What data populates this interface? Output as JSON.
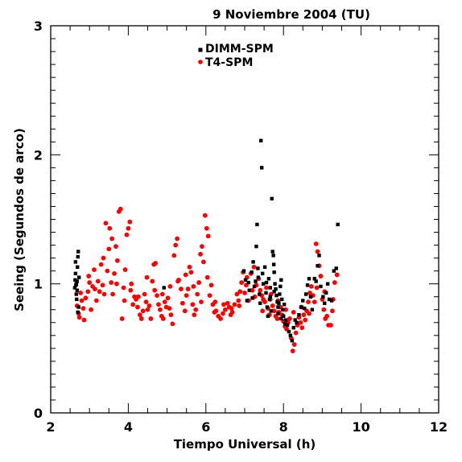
{
  "colors": {
    "dimm": "#000000",
    "t4": "#ff0000",
    "axes": "#000000",
    "background": "#ffffff"
  },
  "chart_data": {
    "type": "scatter",
    "title": "9 Noviembre 2004 (TU)",
    "xlabel": "Tiempo Universal (h)",
    "ylabel": "Seeing (Segundos de arco)",
    "xlim": [
      2,
      12
    ],
    "ylim": [
      0,
      3
    ],
    "x_major_ticks": [
      2,
      4,
      6,
      8,
      10,
      12
    ],
    "x_tick_labels": [
      "2",
      "4",
      "6",
      "8",
      "10",
      "12"
    ],
    "y_major_ticks": [
      0,
      1,
      2,
      3
    ],
    "y_tick_labels": [
      "0",
      "1",
      "2",
      "3"
    ],
    "grid": false,
    "legend_placement": "top-center",
    "series": [
      {
        "name": "DIMM-SPM",
        "color": "#000000",
        "marker": "square",
        "points": [
          [
            2.62,
            0.97
          ],
          [
            2.63,
            1.03
          ],
          [
            2.64,
            1.08
          ],
          [
            2.65,
            0.99
          ],
          [
            2.66,
            0.92
          ],
          [
            2.67,
            0.88
          ],
          [
            2.68,
            1.02
          ],
          [
            2.69,
            1.13
          ],
          [
            2.7,
            1.21
          ],
          [
            2.71,
            1.25
          ],
          [
            2.72,
            0.82
          ],
          [
            2.73,
            1.05
          ],
          [
            2.64,
            1.17
          ],
          [
            2.66,
            1.0
          ],
          [
            2.68,
            0.95
          ],
          [
            2.7,
            0.78
          ],
          [
            4.92,
            0.97
          ],
          [
            6.98,
            1.1
          ],
          [
            7.02,
            1.03
          ],
          [
            7.06,
            0.87
          ],
          [
            7.12,
            0.95
          ],
          [
            7.18,
            1.09
          ],
          [
            7.22,
            1.17
          ],
          [
            7.25,
            0.98
          ],
          [
            7.28,
            1.02
          ],
          [
            7.3,
            1.29
          ],
          [
            7.32,
            1.46
          ],
          [
            7.35,
            1.05
          ],
          [
            7.38,
            0.92
          ],
          [
            7.4,
            0.85
          ],
          [
            7.42,
            2.11
          ],
          [
            7.44,
            1.9
          ],
          [
            7.46,
            1.08
          ],
          [
            7.48,
            1.0
          ],
          [
            7.52,
            1.13
          ],
          [
            7.55,
            0.93
          ],
          [
            7.58,
            0.82
          ],
          [
            7.6,
            0.75
          ],
          [
            7.62,
            1.04
          ],
          [
            7.64,
            0.88
          ],
          [
            7.66,
            0.9
          ],
          [
            7.68,
            0.79
          ],
          [
            7.7,
            1.66
          ],
          [
            7.72,
            1.25
          ],
          [
            7.74,
            1.22
          ],
          [
            7.75,
            1.15
          ],
          [
            7.76,
            1.09
          ],
          [
            7.78,
            1.0
          ],
          [
            7.8,
            0.96
          ],
          [
            7.82,
            0.91
          ],
          [
            7.84,
            0.86
          ],
          [
            7.86,
            0.82
          ],
          [
            7.88,
            0.85
          ],
          [
            7.9,
            0.92
          ],
          [
            7.92,
            0.98
          ],
          [
            7.94,
            1.03
          ],
          [
            7.96,
            0.88
          ],
          [
            7.98,
            0.8
          ],
          [
            8.0,
            0.75
          ],
          [
            8.02,
            0.84
          ],
          [
            8.04,
            0.69
          ],
          [
            8.06,
            0.72
          ],
          [
            8.1,
            0.68
          ],
          [
            8.14,
            0.63
          ],
          [
            8.18,
            0.6
          ],
          [
            8.22,
            0.56
          ],
          [
            8.26,
            0.66
          ],
          [
            8.3,
            0.72
          ],
          [
            8.34,
            0.7
          ],
          [
            8.4,
            0.76
          ],
          [
            8.46,
            0.82
          ],
          [
            8.5,
            0.87
          ],
          [
            8.54,
            0.81
          ],
          [
            8.58,
            0.92
          ],
          [
            8.62,
            0.99
          ],
          [
            8.66,
            1.04
          ],
          [
            8.7,
            0.9
          ],
          [
            8.74,
            0.8
          ],
          [
            8.8,
            1.04
          ],
          [
            8.84,
            1.02
          ],
          [
            8.88,
            1.14
          ],
          [
            8.92,
            1.22
          ],
          [
            8.96,
            0.98
          ],
          [
            9.02,
            0.9
          ],
          [
            9.06,
            0.85
          ],
          [
            9.1,
            0.93
          ],
          [
            9.14,
            1.0
          ],
          [
            9.18,
            0.88
          ],
          [
            9.24,
            0.87
          ],
          [
            9.3,
            1.1
          ],
          [
            9.36,
            1.12
          ],
          [
            9.4,
            1.46
          ],
          [
            7.1,
            1.01
          ],
          [
            7.2,
            0.89
          ],
          [
            7.34,
            1.12
          ],
          [
            7.56,
            1.01
          ],
          [
            7.66,
            0.97
          ],
          [
            7.76,
            0.94
          ],
          [
            7.86,
            0.77
          ],
          [
            7.94,
            0.73
          ]
        ]
      },
      {
        "name": "T4-SPM",
        "color": "#ff0000",
        "marker": "circle",
        "points": [
          [
            2.68,
            0.83
          ],
          [
            2.72,
            0.77
          ],
          [
            2.74,
            0.74
          ],
          [
            2.77,
            0.93
          ],
          [
            2.8,
            0.87
          ],
          [
            2.86,
            0.72
          ],
          [
            2.9,
            0.89
          ],
          [
            2.96,
            0.94
          ],
          [
            3.0,
            1.01
          ],
          [
            3.04,
            0.8
          ],
          [
            3.08,
            0.98
          ],
          [
            3.12,
            1.11
          ],
          [
            3.18,
            0.87
          ],
          [
            3.22,
            1.02
          ],
          [
            3.26,
            0.94
          ],
          [
            3.3,
            1.15
          ],
          [
            3.34,
            0.99
          ],
          [
            3.38,
            0.92
          ],
          [
            3.42,
            1.47
          ],
          [
            3.46,
            1.1
          ],
          [
            3.5,
            1.27
          ],
          [
            3.52,
            1.43
          ],
          [
            3.56,
            1.01
          ],
          [
            3.6,
            0.92
          ],
          [
            3.64,
            1.08
          ],
          [
            3.68,
            1.29
          ],
          [
            3.72,
            1.18
          ],
          [
            3.76,
            1.56
          ],
          [
            3.8,
            1.58
          ],
          [
            3.84,
            0.73
          ],
          [
            3.88,
            0.97
          ],
          [
            3.92,
            1.11
          ],
          [
            3.96,
            1.38
          ],
          [
            4.0,
            1.43
          ],
          [
            4.04,
            1.48
          ],
          [
            4.08,
            1.0
          ],
          [
            4.12,
            0.84
          ],
          [
            4.16,
            0.9
          ],
          [
            4.2,
            0.88
          ],
          [
            4.24,
            0.82
          ],
          [
            4.3,
            0.76
          ],
          [
            4.34,
            0.73
          ],
          [
            4.38,
            0.79
          ],
          [
            4.42,
            0.92
          ],
          [
            4.46,
            0.86
          ],
          [
            4.5,
            0.8
          ],
          [
            4.54,
            0.83
          ],
          [
            4.58,
            0.73
          ],
          [
            4.62,
            1.02
          ],
          [
            4.66,
            1.15
          ],
          [
            4.7,
            1.16
          ],
          [
            4.74,
            0.91
          ],
          [
            4.78,
            0.84
          ],
          [
            4.82,
            0.8
          ],
          [
            4.86,
            0.75
          ],
          [
            4.9,
            0.73
          ],
          [
            4.94,
            0.86
          ],
          [
            4.98,
            0.82
          ],
          [
            5.02,
            0.89
          ],
          [
            5.06,
            0.81
          ],
          [
            5.1,
            0.76
          ],
          [
            5.14,
            0.69
          ],
          [
            5.18,
            1.22
          ],
          [
            5.22,
            1.3
          ],
          [
            5.26,
            1.35
          ],
          [
            5.3,
            1.03
          ],
          [
            5.36,
            0.96
          ],
          [
            5.4,
            0.85
          ],
          [
            5.46,
            0.79
          ],
          [
            5.5,
            0.91
          ],
          [
            5.54,
            0.96
          ],
          [
            5.58,
            1.13
          ],
          [
            5.62,
            1.09
          ],
          [
            5.66,
            0.84
          ],
          [
            5.7,
            0.76
          ],
          [
            5.74,
            0.8
          ],
          [
            5.78,
            0.92
          ],
          [
            5.82,
            1.01
          ],
          [
            5.86,
            1.23
          ],
          [
            5.9,
            1.29
          ],
          [
            5.94,
            1.17
          ],
          [
            5.98,
            1.53
          ],
          [
            6.02,
            1.43
          ],
          [
            6.06,
            1.37
          ],
          [
            6.1,
            0.91
          ],
          [
            6.14,
            0.99
          ],
          [
            6.18,
            0.84
          ],
          [
            6.22,
            0.78
          ],
          [
            6.26,
            0.79
          ],
          [
            6.32,
            0.75
          ],
          [
            6.38,
            0.73
          ],
          [
            6.44,
            0.77
          ],
          [
            6.5,
            0.8
          ],
          [
            6.56,
            0.85
          ],
          [
            6.6,
            0.82
          ],
          [
            6.64,
            0.76
          ],
          [
            6.68,
            0.78
          ],
          [
            6.74,
            0.84
          ],
          [
            6.8,
            0.92
          ],
          [
            6.84,
            0.87
          ],
          [
            6.88,
            0.94
          ],
          [
            6.92,
            1.01
          ],
          [
            6.96,
            1.09
          ],
          [
            7.0,
            0.93
          ],
          [
            7.04,
            0.99
          ],
          [
            7.1,
            0.87
          ],
          [
            7.16,
            1.08
          ],
          [
            7.2,
            0.95
          ],
          [
            7.26,
            0.9
          ],
          [
            7.3,
            0.99
          ],
          [
            7.36,
            1.04
          ],
          [
            7.4,
            0.95
          ],
          [
            7.44,
            0.91
          ],
          [
            7.48,
            0.88
          ],
          [
            7.52,
            0.86
          ],
          [
            7.56,
            0.97
          ],
          [
            7.6,
            0.81
          ],
          [
            7.64,
            0.76
          ],
          [
            7.68,
            0.92
          ],
          [
            7.72,
            0.83
          ],
          [
            7.76,
            0.79
          ],
          [
            7.8,
            0.75
          ],
          [
            7.84,
            0.73
          ],
          [
            7.88,
            0.78
          ],
          [
            7.92,
            0.82
          ],
          [
            7.96,
            0.76
          ],
          [
            8.0,
            0.71
          ],
          [
            8.04,
            0.67
          ],
          [
            8.08,
            0.65
          ],
          [
            8.12,
            0.7
          ],
          [
            8.16,
            0.73
          ],
          [
            8.2,
            0.58
          ],
          [
            8.24,
            0.48
          ],
          [
            8.28,
            0.53
          ],
          [
            8.32,
            0.62
          ],
          [
            8.36,
            0.68
          ],
          [
            8.4,
            0.74
          ],
          [
            8.44,
            0.7
          ],
          [
            8.48,
            0.66
          ],
          [
            8.52,
            0.76
          ],
          [
            8.56,
            0.72
          ],
          [
            8.6,
            0.79
          ],
          [
            8.64,
            0.86
          ],
          [
            8.68,
            0.93
          ],
          [
            8.72,
            0.98
          ],
          [
            8.76,
            0.91
          ],
          [
            8.8,
            0.86
          ],
          [
            8.84,
            1.31
          ],
          [
            8.88,
            1.25
          ],
          [
            8.92,
            1.14
          ],
          [
            8.96,
            1.06
          ],
          [
            9.0,
            0.88
          ],
          [
            9.04,
            0.8
          ],
          [
            9.08,
            0.73
          ],
          [
            9.12,
            0.75
          ],
          [
            9.16,
            0.68
          ],
          [
            9.22,
            0.68
          ],
          [
            9.28,
            0.88
          ],
          [
            9.32,
            1.01
          ],
          [
            9.38,
            1.07
          ],
          [
            2.84,
            0.81
          ],
          [
            2.98,
            1.06
          ],
          [
            3.14,
            0.96
          ],
          [
            3.36,
            1.2
          ],
          [
            3.58,
            1.35
          ],
          [
            3.7,
            1.0
          ],
          [
            3.9,
            0.87
          ],
          [
            4.06,
            0.95
          ],
          [
            4.26,
            0.9
          ],
          [
            4.48,
            1.05
          ],
          [
            4.68,
            0.95
          ],
          [
            4.88,
            0.92
          ],
          [
            5.08,
            0.98
          ],
          [
            5.28,
            1.02
          ],
          [
            5.48,
            1.07
          ],
          [
            5.68,
            0.98
          ],
          [
            5.88,
            0.86
          ],
          [
            6.04,
            1.05
          ],
          [
            6.24,
            0.86
          ],
          [
            6.46,
            0.84
          ],
          [
            6.66,
            0.81
          ],
          [
            6.86,
            0.83
          ],
          [
            7.06,
            1.05
          ],
          [
            7.24,
            1.13
          ],
          [
            7.46,
            0.79
          ],
          [
            7.66,
            0.88
          ],
          [
            7.86,
            0.87
          ],
          [
            8.06,
            0.8
          ],
          [
            8.26,
            0.78
          ],
          [
            8.46,
            0.82
          ],
          [
            8.66,
            0.77
          ],
          [
            8.86,
            0.97
          ],
          [
            9.06,
            0.94
          ],
          [
            9.26,
            0.79
          ]
        ]
      }
    ]
  }
}
